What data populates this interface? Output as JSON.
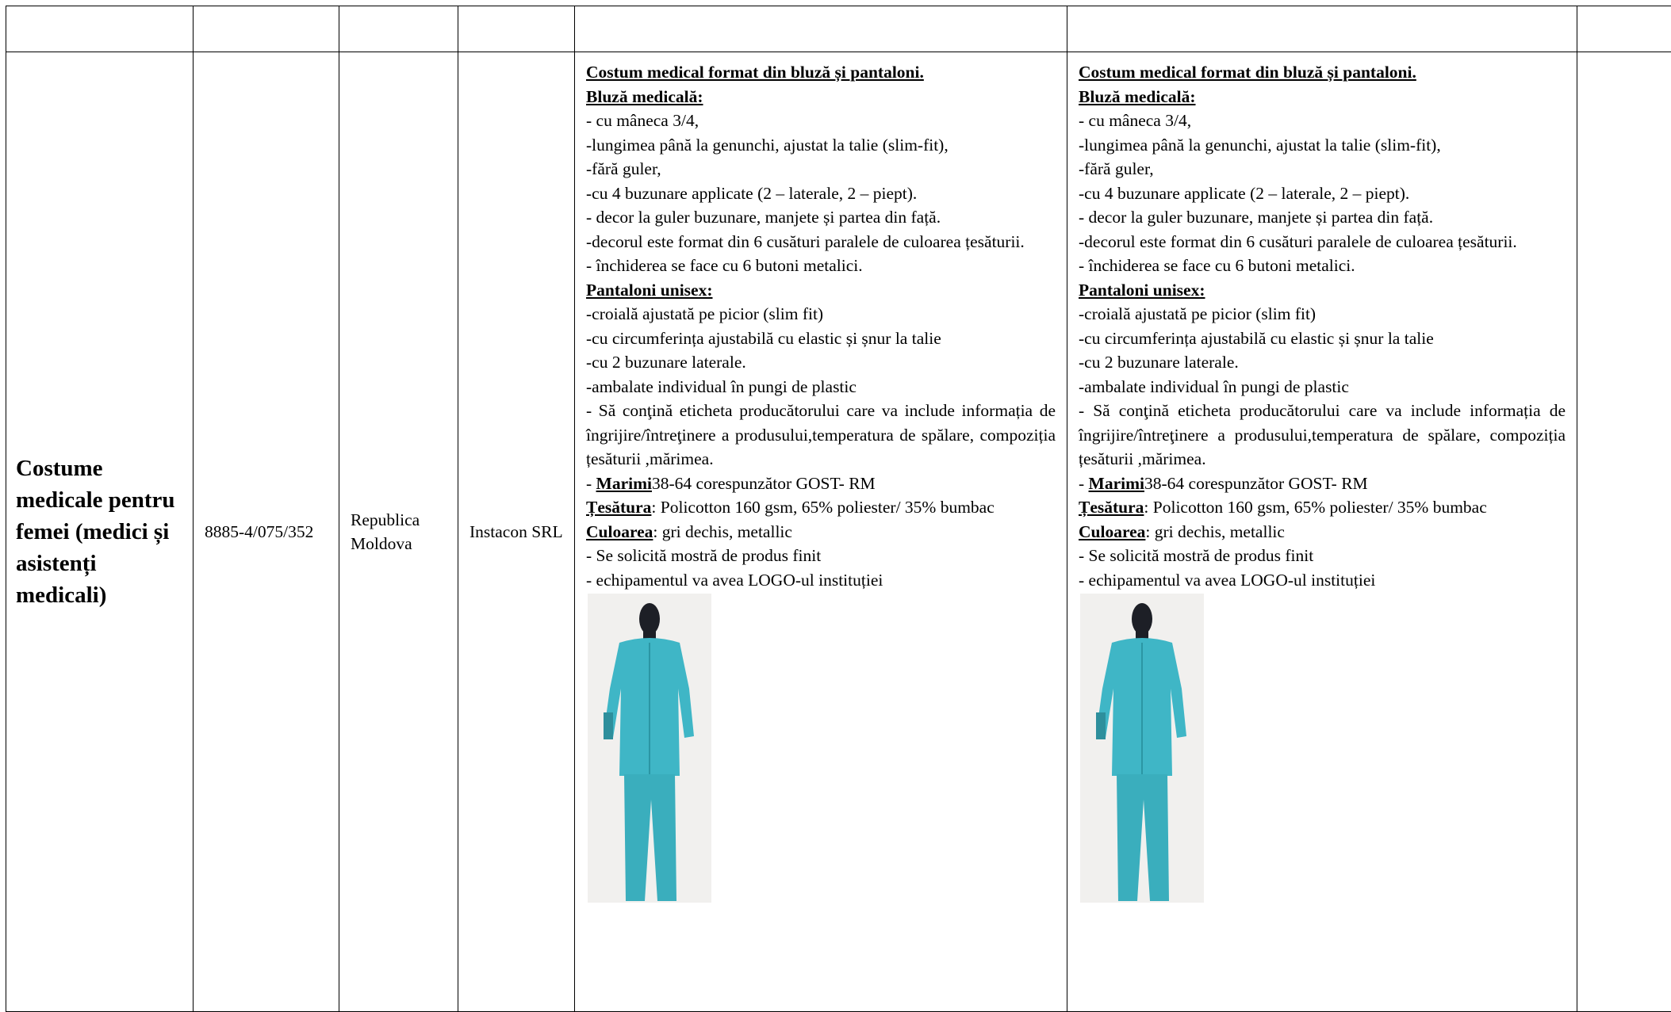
{
  "table": {
    "rows": [
      [
        "Costume medicale pentru femei (medici și asistenți medicali)",
        "8885-4/075/352",
        "Republica Moldova",
        "Instacon SRL"
      ]
    ],
    "specs": [
      [
        {
          "heading": "Costum medical format din bluză și pantaloni."
        },
        {
          "heading": "Bluză medicală:"
        },
        {
          "text": "- cu mâneca 3/4,"
        },
        {
          "text": "-lungimea până la genunchi, ajustat la talie (slim-fit),"
        },
        {
          "text": "-fără guler,"
        },
        {
          "text": "-cu 4 buzunare applicate (2 – laterale, 2 – piept)."
        },
        {
          "text": "- decor la guler buzunare, manjete și partea din față."
        },
        {
          "text": "-decorul este format din 6 cusături paralele de culoarea țesăturii."
        },
        {
          "text": "- închiderea se face cu 6 butoni metalici."
        },
        {
          "heading": "Pantaloni unisex:"
        },
        {
          "text": "-croială ajustată pe picior (slim fit)"
        },
        {
          "text": "-cu circumferința ajustabilă cu elastic și șnur la talie"
        },
        {
          "text": "-cu 2 buzunare laterale."
        },
        {
          "text": "-ambalate individual în pungi de plastic"
        },
        {
          "text": "- Să conţină eticheta producătorului care va include informația de îngrijire/întreţinere a produsului,temperatura de spălare, compoziția țesăturii ,mărimea."
        },
        {
          "prefix": "- ",
          "label": "Marimi",
          "text": "38-64 corespunzător GOST- RM"
        },
        {
          "label": "Țesătura",
          "text": ": Policotton 160 gsm, 65% poliester/ 35% bumbac"
        },
        {
          "label": "Culoarea",
          "text": ": gri dechis, metallic"
        },
        {
          "text": "- Se solicită mostră de produs finit"
        },
        {
          "text": "- echipamentul va  avea LOGO-ul instituției"
        }
      ],
      [
        {
          "heading": "Costum medical format din bluză și pantaloni."
        },
        {
          "heading": "Bluză medicală:"
        },
        {
          "text": "- cu mâneca 3/4,"
        },
        {
          "text": "-lungimea până la genunchi, ajustat la talie (slim-fit),"
        },
        {
          "text": "-fără guler,"
        },
        {
          "text": "-cu 4 buzunare applicate (2 – laterale, 2 – piept)."
        },
        {
          "text": "- decor la guler buzunare, manjete și partea din față."
        },
        {
          "text": "-decorul este format din 6 cusături paralele de culoarea țesăturii."
        },
        {
          "text": "- închiderea se face cu 6 butoni metalici."
        },
        {
          "heading": "Pantaloni unisex:"
        },
        {
          "text": "-croială ajustată pe picior (slim fit)"
        },
        {
          "text": "-cu circumferința ajustabilă cu elastic și șnur la talie"
        },
        {
          "text": "-cu 2 buzunare laterale."
        },
        {
          "text": "-ambalate individual în pungi de plastic"
        },
        {
          "text": "- Să conţină eticheta producătorului care va include informația de îngrijire/întreţinere a produsului,temperatura de spălare, compoziția țesăturii ,mărimea."
        },
        {
          "prefix": "- ",
          "label": "Marimi",
          "text": "38-64 corespunzător GOST- RM"
        },
        {
          "label": "Țesătura",
          "text": ": Policotton 160 gsm, 65% poliester/ 35% bumbac"
        },
        {
          "label": "Culoarea",
          "text": ": gri dechis, metallic"
        },
        {
          "text": "- Se solicită mostră de produs finit"
        },
        {
          "text": "- echipamentul va  avea LOGO-ul instituției"
        }
      ]
    ]
  }
}
